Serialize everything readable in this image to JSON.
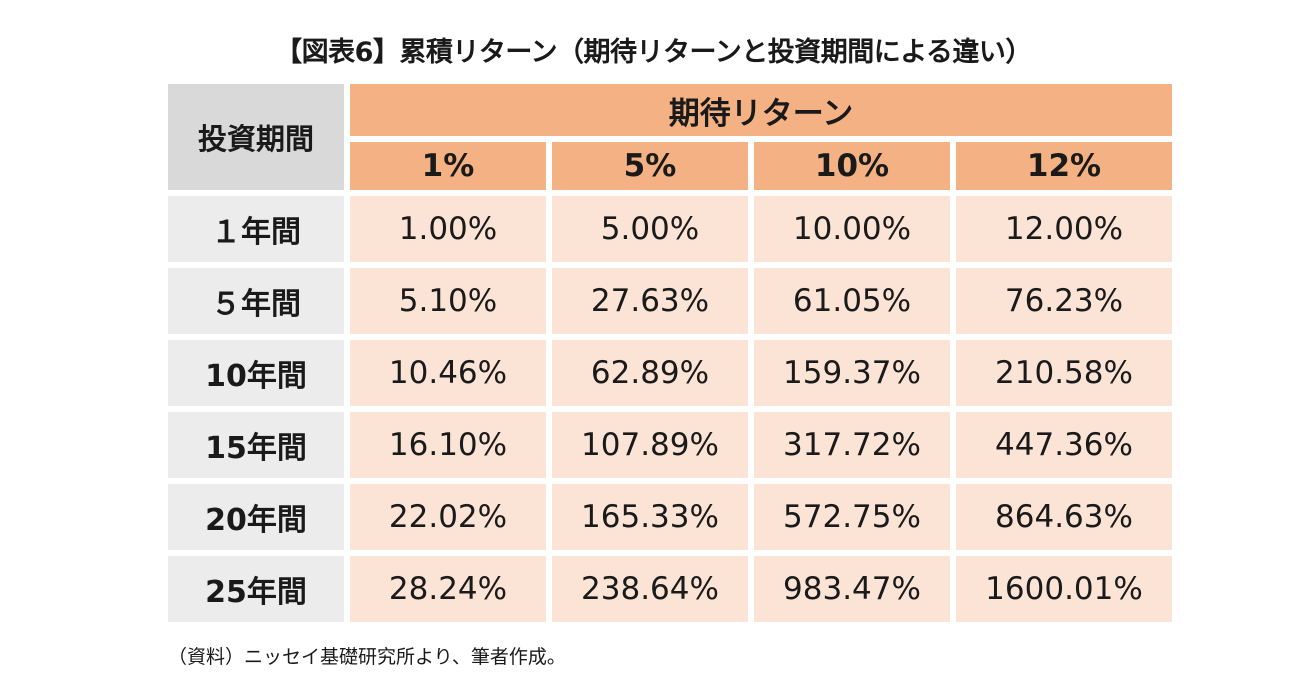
{
  "chart_data": {
    "type": "table",
    "title": "【図表6】累積リターン（期待リターンと投資期間による違い）",
    "row_header_label": "投資期間",
    "column_group_label": "期待リターン",
    "columns": [
      "1%",
      "5%",
      "10%",
      "12%"
    ],
    "rows": [
      {
        "label": "１年間",
        "values": [
          "1.00%",
          "5.00%",
          "10.00%",
          "12.00%"
        ]
      },
      {
        "label": "５年間",
        "values": [
          "5.10%",
          "27.63%",
          "61.05%",
          "76.23%"
        ]
      },
      {
        "label": "10年間",
        "values": [
          "10.46%",
          "62.89%",
          "159.37%",
          "210.58%"
        ]
      },
      {
        "label": "15年間",
        "values": [
          "16.10%",
          "107.89%",
          "317.72%",
          "447.36%"
        ]
      },
      {
        "label": "20年間",
        "values": [
          "22.02%",
          "165.33%",
          "572.75%",
          "864.63%"
        ]
      },
      {
        "label": "25年間",
        "values": [
          "28.24%",
          "238.64%",
          "983.47%",
          "1600.01%"
        ]
      }
    ],
    "source_note": "（資料）ニッセイ基礎研究所より、筆者作成。"
  },
  "colors": {
    "header_fill": "#f4b183",
    "value_fill": "#fbe3d6",
    "row_label_fill": "#ececec",
    "corner_fill": "#d9d9d9"
  }
}
